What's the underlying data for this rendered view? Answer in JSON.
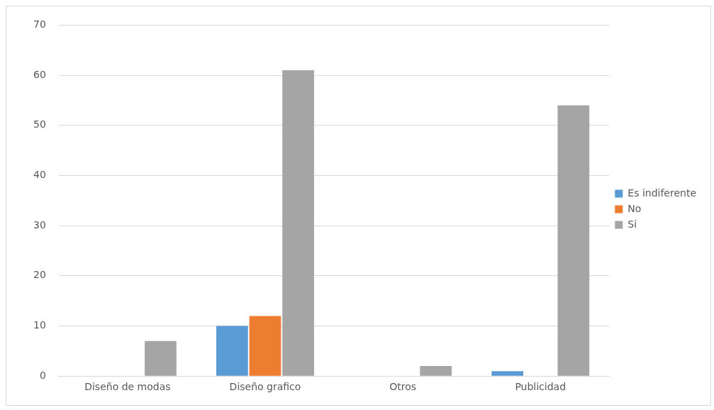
{
  "chart_data": {
    "type": "bar",
    "categories": [
      "Diseño de modas",
      "Diseño grafico",
      "Otros",
      "Publicidad"
    ],
    "series": [
      {
        "name": "Es indiferente",
        "color": "#5b9bd5",
        "values": [
          0,
          10,
          0,
          1
        ]
      },
      {
        "name": "No",
        "color": "#ed7d31",
        "values": [
          0,
          12,
          0,
          0
        ]
      },
      {
        "name": "Si",
        "color": "#a5a5a5",
        "values": [
          7,
          61,
          2,
          54
        ]
      }
    ],
    "ylim": [
      0,
      70
    ],
    "yticks": [
      0,
      10,
      20,
      30,
      40,
      50,
      60,
      70
    ],
    "grid": "y",
    "legend": "right"
  }
}
